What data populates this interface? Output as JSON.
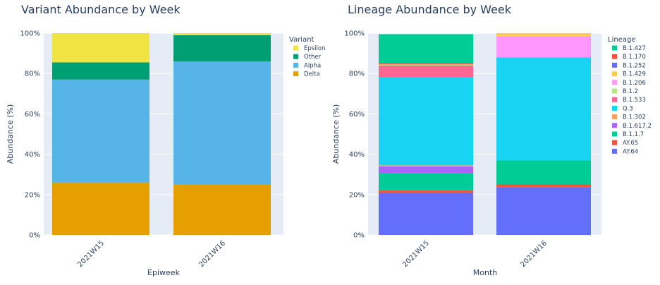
{
  "chart_data": [
    {
      "type": "bar",
      "stacked": true,
      "title": "Variant Abundance by Week",
      "xlabel": "Epiweek",
      "ylabel": "Abundance (%)",
      "ylim": [
        0,
        100
      ],
      "yticks": [
        "0%",
        "20%",
        "40%",
        "60%",
        "80%",
        "100%"
      ],
      "categories": [
        "2021W15",
        "2021W16"
      ],
      "legend_title": "Variant",
      "legend_placement": "right",
      "series": [
        {
          "name": "Delta",
          "color": "#e5a000",
          "values": [
            26,
            25
          ]
        },
        {
          "name": "Alpha",
          "color": "#56b4e9",
          "values": [
            51,
            61
          ]
        },
        {
          "name": "Other",
          "color": "#009e73",
          "values": [
            8.5,
            13
          ]
        },
        {
          "name": "Epsilon",
          "color": "#f0e442",
          "values": [
            14.5,
            1
          ]
        }
      ],
      "legend_order": [
        "Epsilon",
        "Other",
        "Alpha",
        "Delta"
      ]
    },
    {
      "type": "bar",
      "stacked": true,
      "title": "Lineage Abundance by Week",
      "xlabel": "Month",
      "ylabel": "Abundance (%)",
      "ylim": [
        0,
        100
      ],
      "yticks": [
        "0%",
        "20%",
        "40%",
        "60%",
        "80%",
        "100%"
      ],
      "categories": [
        "2021W15",
        "2021W16"
      ],
      "legend_title": "Lineage",
      "legend_placement": "right",
      "series": [
        {
          "name": "AY.64",
          "color": "#636efa",
          "values": [
            21,
            23.5
          ]
        },
        {
          "name": "AY.65",
          "color": "#ef553b",
          "values": [
            1,
            1.5
          ]
        },
        {
          "name": "B.1.1.7",
          "color": "#00cc96",
          "values": [
            8.5,
            12
          ]
        },
        {
          "name": "B.1.617.2",
          "color": "#ab63fa",
          "values": [
            3.5,
            0
          ]
        },
        {
          "name": "B.1.302",
          "color": "#ffa15a",
          "values": [
            0.5,
            0
          ]
        },
        {
          "name": "Q.3",
          "color": "#19d3f3",
          "values": [
            43.5,
            51
          ]
        },
        {
          "name": "B.1.533",
          "color": "#ff6692",
          "values": [
            6,
            0
          ]
        },
        {
          "name": "B.1.2",
          "color": "#b6e880",
          "values": [
            0.5,
            0
          ]
        },
        {
          "name": "B.1.206",
          "color": "#ff97ff",
          "values": [
            0,
            10.5
          ]
        },
        {
          "name": "B.1.429",
          "color": "#fecb52",
          "values": [
            0,
            1.5
          ]
        },
        {
          "name": "B.1.252",
          "color": "#636efa",
          "values": [
            0,
            0
          ]
        },
        {
          "name": "B.1.170",
          "color": "#ef553b",
          "values": [
            0.5,
            0
          ]
        },
        {
          "name": "B.1.427",
          "color": "#00cc96",
          "values": [
            14.5,
            0
          ]
        }
      ],
      "legend_order": [
        "B.1.427",
        "B.1.170",
        "B.1.252",
        "B.1.429",
        "B.1.206",
        "B.1.2",
        "B.1.533",
        "Q.3",
        "B.1.302",
        "B.1.617.2",
        "B.1.1.7",
        "AY.65",
        "AY.64"
      ]
    }
  ]
}
